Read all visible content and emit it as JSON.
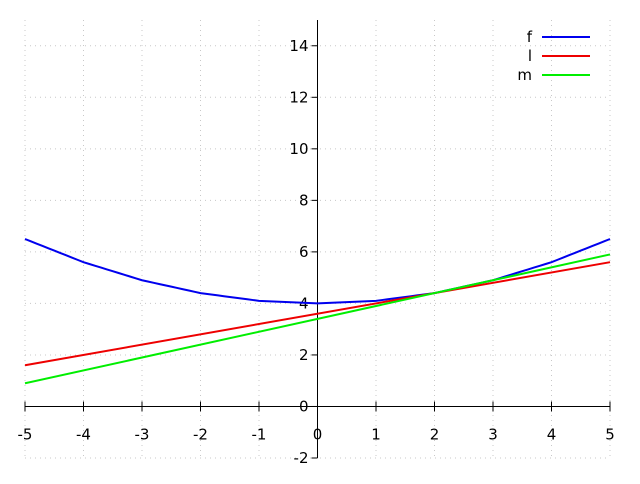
{
  "chart_data": {
    "type": "line",
    "title": "",
    "xlabel": "",
    "ylabel": "",
    "xlim": [
      -5,
      5
    ],
    "ylim": [
      -2,
      15
    ],
    "x_ticks": [
      -5,
      -4,
      -3,
      -2,
      -1,
      0,
      1,
      2,
      3,
      4,
      5
    ],
    "y_ticks": [
      -2,
      0,
      2,
      4,
      6,
      8,
      10,
      12,
      14
    ],
    "x_tick_labels": [
      "-5",
      "-4",
      "-3",
      "-2",
      "-1",
      "0",
      "1",
      "2",
      "3",
      "4",
      "5"
    ],
    "y_tick_labels": [
      "-2",
      "0",
      "2",
      "4",
      "6",
      "8",
      "10",
      "12",
      "14"
    ],
    "grid": true,
    "grid_style": "dotted",
    "legend_position": "top-right",
    "axes_through_origin": true,
    "series": [
      {
        "name": "f",
        "color": "#0000ee",
        "x": [
          -5,
          -4,
          -3,
          -2,
          -1,
          0,
          1,
          2,
          3,
          4,
          5
        ],
        "y": [
          6.5,
          5.6,
          4.9,
          4.4,
          4.1,
          4.0,
          4.1,
          4.4,
          4.9,
          5.6,
          6.5
        ]
      },
      {
        "name": "l",
        "color": "#ee0000",
        "x": [
          -5,
          5
        ],
        "y": [
          1.6,
          5.6
        ]
      },
      {
        "name": "m",
        "color": "#00ee00",
        "x": [
          -5,
          5
        ],
        "y": [
          0.9,
          5.9
        ]
      }
    ]
  }
}
